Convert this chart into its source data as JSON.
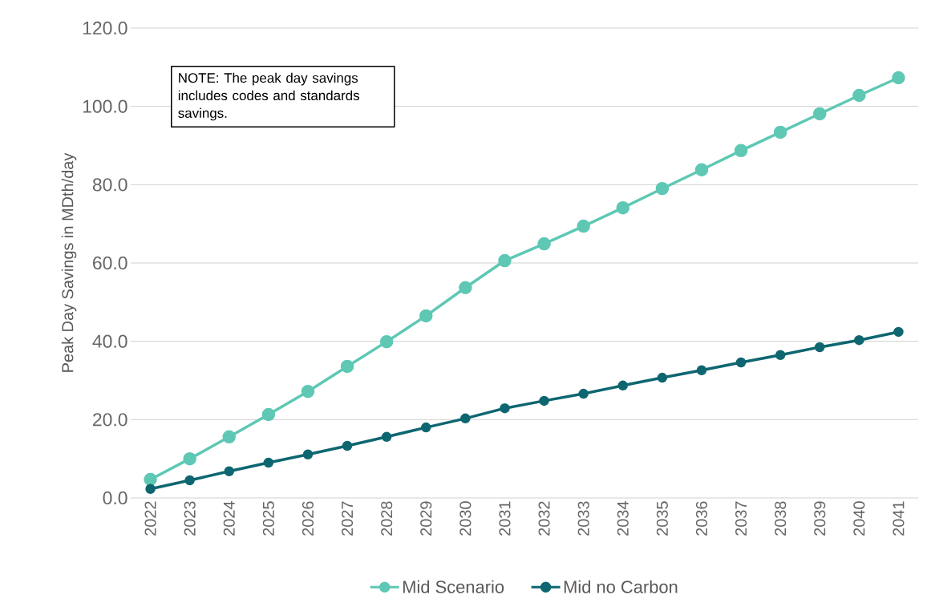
{
  "chart_data": {
    "type": "line",
    "ylabel": "Peak Day Savings in MDth/day",
    "categories": [
      "2022",
      "2023",
      "2024",
      "2025",
      "2026",
      "2027",
      "2028",
      "2029",
      "2030",
      "2031",
      "2032",
      "2033",
      "2034",
      "2035",
      "2036",
      "2037",
      "2038",
      "2039",
      "2040",
      "2041"
    ],
    "series": [
      {
        "name": "Mid Scenario",
        "color": "#5ec8b4",
        "values": [
          4.7,
          10.0,
          15.6,
          21.3,
          27.2,
          33.6,
          39.9,
          46.5,
          53.7,
          60.6,
          64.9,
          69.4,
          74.1,
          79.0,
          83.8,
          88.7,
          93.4,
          98.1,
          102.8,
          107.3
        ]
      },
      {
        "name": "Mid no Carbon",
        "color": "#0e6670",
        "values": [
          2.3,
          4.5,
          6.8,
          9.0,
          11.1,
          13.3,
          15.6,
          18.0,
          20.3,
          22.9,
          24.8,
          26.6,
          28.7,
          30.7,
          32.6,
          34.6,
          36.5,
          38.5,
          40.3,
          42.4
        ]
      }
    ],
    "ylim": [
      0,
      120
    ],
    "yticks": [
      {
        "value": 0,
        "label": "0.0"
      },
      {
        "value": 20,
        "label": "20.0"
      },
      {
        "value": 40,
        "label": "40.0"
      },
      {
        "value": 60,
        "label": "60.0"
      },
      {
        "value": 80,
        "label": "80.0"
      },
      {
        "value": 100,
        "label": "100.0"
      },
      {
        "value": 120,
        "label": "120.0"
      }
    ],
    "grid": "y",
    "legend": "bottom",
    "marker": "circle",
    "annotations": [
      "NOTE: The peak day savings includes codes and standards savings."
    ]
  }
}
